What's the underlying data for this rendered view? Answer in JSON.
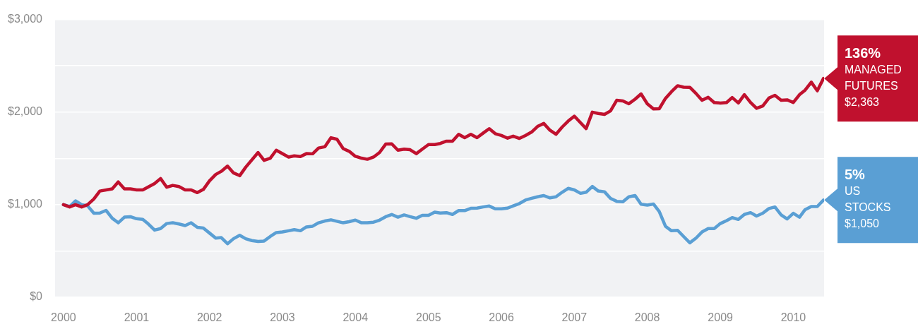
{
  "chart_data": {
    "type": "line",
    "marker": "none",
    "grid": "y",
    "xlim": [
      "1999-11-20",
      "2010-06-04"
    ],
    "xticks": [
      "2000",
      "2001",
      "2002",
      "2003",
      "2004",
      "2005",
      "2006",
      "2007",
      "2008",
      "2009",
      "2010"
    ],
    "ylim": [
      0,
      3000
    ],
    "yticks": [
      {
        "value": 0,
        "label": "$0"
      },
      {
        "value": 500,
        "label": null
      },
      {
        "value": 1000,
        "label": "$1,000"
      },
      {
        "value": 1500,
        "label": null
      },
      {
        "value": 2000,
        "label": "$2,000"
      },
      {
        "value": 2500,
        "label": null
      },
      {
        "value": 3000,
        "label": "$3,000"
      }
    ],
    "annotations": [
      {
        "text": "136%",
        "x": "2010-06",
        "y": 2363
      },
      {
        "text": "$2,363",
        "x": "2010-06",
        "y": 2363
      },
      {
        "text": "5%",
        "x": "2010-06",
        "y": 1050
      },
      {
        "text": "$1,050",
        "x": "2010-06",
        "y": 1050
      }
    ],
    "series": [
      {
        "name": "MANAGED FUTURES",
        "color": "#c0112e",
        "x": [
          "2000-01",
          "2000-02",
          "2000-03",
          "2000-04",
          "2000-05",
          "2000-06",
          "2000-07",
          "2000-09",
          "2000-10",
          "2000-11",
          "2000-12",
          "2001-01",
          "2001-02",
          "2001-04",
          "2001-05",
          "2001-06",
          "2001-07",
          "2001-08",
          "2001-09",
          "2001-10",
          "2001-11",
          "2001-12",
          "2002-01",
          "2002-02",
          "2002-03",
          "2002-04",
          "2002-05",
          "2002-06",
          "2002-07",
          "2002-09",
          "2002-10",
          "2002-11",
          "2002-12",
          "2003-02",
          "2003-03",
          "2003-04",
          "2003-05",
          "2003-06",
          "2003-07",
          "2003-08",
          "2003-09",
          "2003-10",
          "2003-11",
          "2003-12",
          "2004-01",
          "2004-02",
          "2004-03",
          "2004-04",
          "2004-05",
          "2004-06",
          "2004-07",
          "2004-08",
          "2004-09",
          "2004-10",
          "2004-11",
          "2004-12",
          "2005-01",
          "2005-02",
          "2005-03",
          "2005-04",
          "2005-05",
          "2005-06",
          "2005-07",
          "2005-08",
          "2005-09",
          "2005-10",
          "2005-11",
          "2005-12",
          "2006-01",
          "2006-02",
          "2006-03",
          "2006-04",
          "2006-05",
          "2006-06",
          "2006-07",
          "2006-08",
          "2006-09",
          "2006-10",
          "2006-11",
          "2006-12",
          "2007-01",
          "2007-03",
          "2007-04",
          "2007-05",
          "2007-06",
          "2007-07",
          "2007-08",
          "2007-09",
          "2007-10",
          "2007-11",
          "2007-12",
          "2008-01",
          "2008-02",
          "2008-03",
          "2008-04",
          "2008-05",
          "2008-06",
          "2008-07",
          "2008-08",
          "2008-09",
          "2008-10",
          "2008-11",
          "2008-12",
          "2009-01",
          "2009-02",
          "2009-03",
          "2009-04",
          "2009-05",
          "2009-06",
          "2009-07",
          "2009-08",
          "2009-09",
          "2009-10",
          "2009-11",
          "2009-12",
          "2010-01",
          "2010-02",
          "2010-03",
          "2010-04",
          "2010-05",
          "2010-06"
        ],
        "values": [
          1000,
          975,
          1000,
          975,
          1000,
          1061,
          1147,
          1171,
          1245,
          1171,
          1171,
          1159,
          1159,
          1228,
          1282,
          1188,
          1208,
          1196,
          1159,
          1159,
          1130,
          1164,
          1257,
          1326,
          1360,
          1416,
          1343,
          1313,
          1404,
          1563,
          1478,
          1502,
          1588,
          1514,
          1527,
          1519,
          1551,
          1549,
          1612,
          1625,
          1723,
          1706,
          1605,
          1576,
          1522,
          1502,
          1490,
          1514,
          1563,
          1654,
          1657,
          1588,
          1600,
          1593,
          1551,
          1600,
          1649,
          1649,
          1661,
          1686,
          1686,
          1760,
          1723,
          1760,
          1723,
          1772,
          1821,
          1767,
          1747,
          1718,
          1740,
          1715,
          1747,
          1784,
          1845,
          1877,
          1804,
          1760,
          1838,
          1902,
          1956,
          1821,
          1999,
          1985,
          1975,
          2012,
          2127,
          2120,
          2090,
          2139,
          2196,
          2090,
          2034,
          2036,
          2147,
          2220,
          2284,
          2269,
          2267,
          2201,
          2127,
          2159,
          2103,
          2098,
          2103,
          2157,
          2098,
          2188,
          2103,
          2041,
          2066,
          2152,
          2181,
          2127,
          2132,
          2103,
          2188,
          2237,
          2323,
          2230,
          2363
        ]
      },
      {
        "name": "US STOCKS",
        "color": "#5a9fd4",
        "x": [
          "2000-01",
          "2000-02",
          "2000-03",
          "2000-04",
          "2000-05",
          "2000-06",
          "2000-07",
          "2000-08",
          "2000-09",
          "2000-10",
          "2000-11",
          "2000-12",
          "2001-01",
          "2001-02",
          "2001-03",
          "2001-04",
          "2001-05",
          "2001-06",
          "2001-07",
          "2001-08",
          "2001-09",
          "2001-10",
          "2001-11",
          "2001-12",
          "2002-01",
          "2002-02",
          "2002-03",
          "2002-04",
          "2002-05",
          "2002-06",
          "2002-07",
          "2002-08",
          "2002-09",
          "2002-10",
          "2002-11",
          "2002-12",
          "2003-01",
          "2003-02",
          "2003-03",
          "2003-04",
          "2003-05",
          "2003-06",
          "2003-07",
          "2003-08",
          "2003-09",
          "2003-11",
          "2003-12",
          "2004-01",
          "2004-02",
          "2004-03",
          "2004-04",
          "2004-05",
          "2004-06",
          "2004-07",
          "2004-08",
          "2004-09",
          "2004-10",
          "2004-11",
          "2004-12",
          "2005-01",
          "2005-02",
          "2005-03",
          "2005-04",
          "2005-05",
          "2005-06",
          "2005-07",
          "2005-08",
          "2005-09",
          "2005-10",
          "2005-11",
          "2005-12",
          "2006-01",
          "2006-02",
          "2006-03",
          "2006-04",
          "2006-05",
          "2006-06",
          "2006-07",
          "2006-08",
          "2006-09",
          "2006-10",
          "2006-11",
          "2006-12",
          "2007-01",
          "2007-02",
          "2007-03",
          "2007-04",
          "2007-05",
          "2007-06",
          "2007-07",
          "2007-08",
          "2007-09",
          "2007-10",
          "2007-11",
          "2007-12",
          "2008-01",
          "2008-02",
          "2008-03",
          "2008-04",
          "2008-05",
          "2008-06",
          "2008-07",
          "2008-08",
          "2008-09",
          "2008-10",
          "2008-11",
          "2008-12",
          "2009-01",
          "2009-02",
          "2009-03",
          "2009-04",
          "2009-05",
          "2009-06",
          "2009-07",
          "2009-08",
          "2009-09",
          "2009-10",
          "2009-11",
          "2009-12",
          "2010-01",
          "2010-02",
          "2010-03",
          "2010-04",
          "2010-05",
          "2010-06"
        ],
        "values": [
          1000,
          980,
          1041,
          1000,
          987,
          907,
          909,
          938,
          853,
          804,
          865,
          870,
          848,
          840,
          791,
          725,
          742,
          796,
          804,
          791,
          774,
          804,
          755,
          747,
          693,
          639,
          644,
          578,
          632,
          669,
          632,
          612,
          602,
          607,
          656,
          698,
          705,
          718,
          730,
          718,
          759,
          767,
          804,
          823,
          836,
          804,
          816,
          833,
          804,
          804,
          811,
          833,
          870,
          894,
          865,
          889,
          870,
          853,
          884,
          884,
          919,
          909,
          914,
          894,
          936,
          936,
          960,
          963,
          975,
          985,
          955,
          955,
          963,
          987,
          1012,
          1049,
          1068,
          1085,
          1098,
          1073,
          1085,
          1134,
          1176,
          1159,
          1122,
          1134,
          1196,
          1147,
          1139,
          1068,
          1036,
          1031,
          1085,
          1098,
          1005,
          995,
          1007,
          926,
          767,
          718,
          723,
          656,
          588,
          639,
          705,
          742,
          742,
          796,
          828,
          860,
          840,
          894,
          914,
          877,
          907,
          958,
          975,
          889,
          845,
          907,
          865,
          946,
          980,
          980,
          1050
        ]
      }
    ]
  }
}
